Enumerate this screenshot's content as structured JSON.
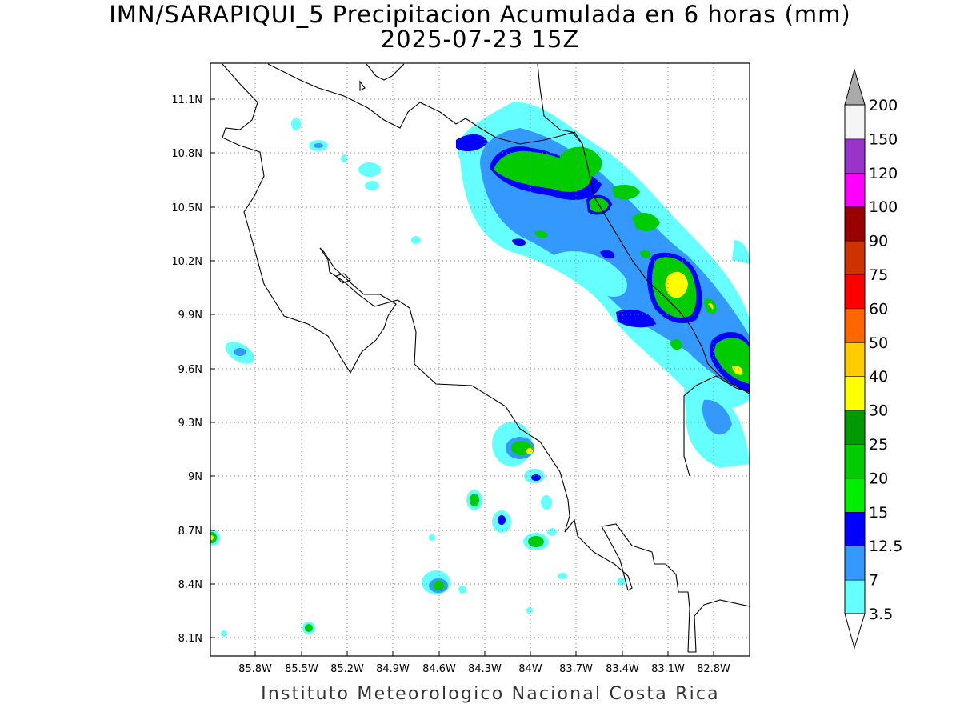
{
  "title": "IMN/SARAPIQUI_5 Precipitacion Acumulada en 6 horas (mm)",
  "subtitle": "2025-07-23 15Z",
  "footer": "Instituto Meteorologico Nacional Costa Rica",
  "map": {
    "lon_range": [
      -86.05,
      -82.5
    ],
    "lat_range": [
      8.0,
      11.3
    ],
    "lon_ticks": [
      "85.8W",
      "85.5W",
      "85.2W",
      "84.9W",
      "84.6W",
      "84.3W",
      "84W",
      "83.7W",
      "83.4W",
      "83.1W",
      "82.8W"
    ],
    "lat_ticks": [
      "11.1N",
      "10.8N",
      "10.5N",
      "10.2N",
      "9.9N",
      "9.6N",
      "9.3N",
      "9N",
      "8.7N",
      "8.4N",
      "8.1N"
    ],
    "grid": "dotted"
  },
  "colorbar": {
    "labels": [
      "3.5",
      "7",
      "12.5",
      "15",
      "20",
      "25",
      "30",
      "40",
      "50",
      "60",
      "75",
      "90",
      "100",
      "120",
      "150",
      "200"
    ],
    "colors": [
      "#66ffff",
      "#3399ff",
      "#0000ff",
      "#00ee00",
      "#00cc00",
      "#009900",
      "#ffff00",
      "#ffcc00",
      "#ff6600",
      "#ff0000",
      "#cc3300",
      "#990000",
      "#ff00ff",
      "#9933cc",
      "#f5f5f5"
    ],
    "extend": "both",
    "upper_extend_color": "#aaaaaa",
    "lower_extend_color": "#ffffff"
  }
}
